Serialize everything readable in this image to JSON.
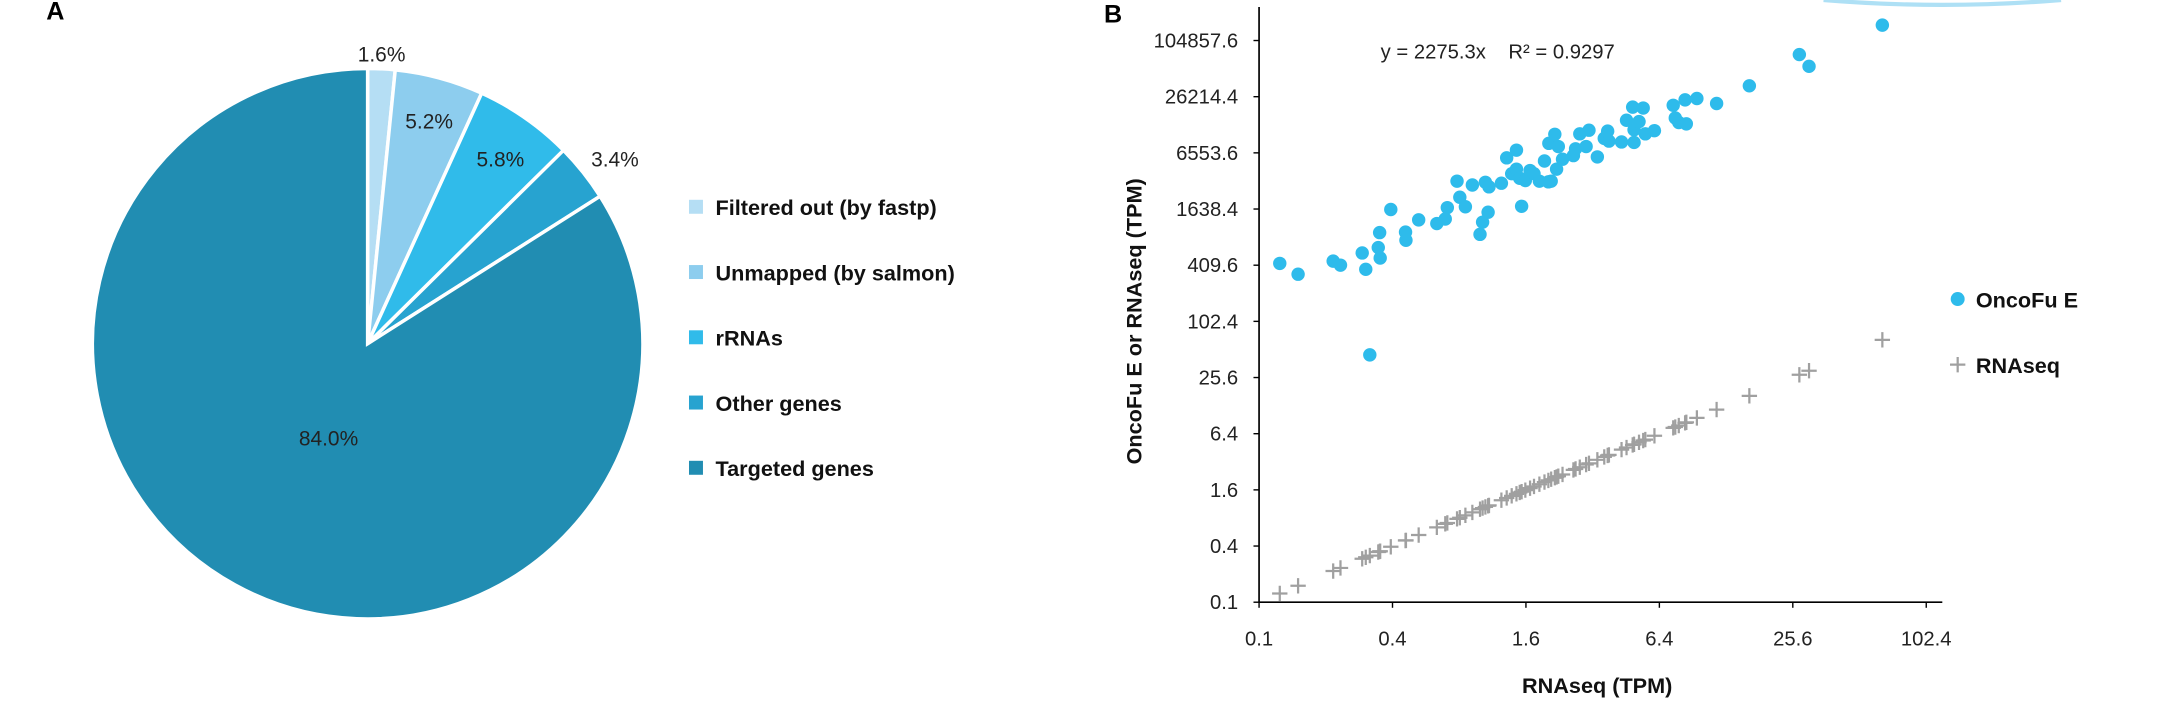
{
  "panels": {
    "a": "A",
    "b": "B"
  },
  "chart_data": [
    {
      "type": "pie",
      "categories": [
        "Filtered out (by fastp)",
        "Unmapped (by salmon)",
        "rRNAs",
        "Other genes",
        "Targeted genes"
      ],
      "values": [
        1.6,
        5.2,
        5.8,
        3.4,
        84.0
      ],
      "labels": [
        "1.6%",
        "5.2%",
        "5.8%",
        "3.4%",
        "84.0%"
      ],
      "colors": [
        "#b5def4",
        "#8dcdee",
        "#30bbea",
        "#27a3d0",
        "#218db2"
      ],
      "start": "top, clockwise",
      "legend": "right"
    },
    {
      "type": "scatter",
      "xlabel": "RNAseq (TPM)",
      "ylabel": "OncoFu E or RNAseq (TPM)",
      "xscale": "log4",
      "yscale": "log4",
      "xlim": [
        0.1,
        124
      ],
      "ylim": [
        0.1,
        262144
      ],
      "xticks": [
        "0.1",
        "0.4",
        "1.6",
        "6.4",
        "25.6",
        "102.4"
      ],
      "yticks": [
        "0.1",
        "0.4",
        "1.6",
        "6.4",
        "25.6",
        "102.4",
        "409.6",
        "1638.4",
        "6553.6",
        "26214.4",
        "104857.6"
      ],
      "grid": false,
      "legend": "right",
      "annotation": "y = 2275.3x    R² = 0.9297",
      "series": [
        {
          "name": "OncoFu E",
          "marker": "circle",
          "color": "#2ebbeb",
          "points": [
            [
              0.124,
              428
            ],
            [
              0.15,
              328
            ],
            [
              0.216,
              453
            ],
            [
              0.233,
              410
            ],
            [
              0.292,
              554
            ],
            [
              0.303,
              370
            ],
            [
              0.316,
              44.8
            ],
            [
              0.345,
              633
            ],
            [
              0.35,
              916
            ],
            [
              0.352,
              489
            ],
            [
              0.393,
              1620
            ],
            [
              0.458,
              927
            ],
            [
              0.46,
              758
            ],
            [
              0.525,
              1253
            ],
            [
              0.634,
              1145
            ],
            [
              0.692,
              1281
            ],
            [
              0.707,
              1694
            ],
            [
              0.782,
              3259
            ],
            [
              0.805,
              2190
            ],
            [
              0.853,
              1733
            ],
            [
              0.917,
              2964
            ],
            [
              0.993,
              877
            ],
            [
              1.02,
              1185
            ],
            [
              1.05,
              3170
            ],
            [
              1.08,
              1515
            ],
            [
              1.09,
              2833
            ],
            [
              1.24,
              3098
            ],
            [
              1.31,
              5797
            ],
            [
              1.38,
              3919
            ],
            [
              1.45,
              7006
            ],
            [
              1.45,
              4381
            ],
            [
              1.5,
              3503
            ],
            [
              1.53,
              1753
            ],
            [
              1.59,
              3313
            ],
            [
              1.67,
              4237
            ],
            [
              1.74,
              3920
            ],
            [
              1.84,
              3260
            ],
            [
              1.94,
              5361
            ],
            [
              2.02,
              3206
            ],
            [
              2.03,
              8290
            ],
            [
              2.08,
              3260
            ],
            [
              2.16,
              10361
            ],
            [
              2.2,
              4381
            ],
            [
              2.24,
              7661
            ],
            [
              2.34,
              5603
            ],
            [
              2.62,
              6128
            ],
            [
              2.68,
              7248
            ],
            [
              2.8,
              10479
            ],
            [
              2.99,
              7661
            ],
            [
              3.08,
              11456
            ],
            [
              3.36,
              5928
            ],
            [
              3.61,
              9372
            ],
            [
              3.74,
              11207
            ],
            [
              3.79,
              8762
            ],
            [
              4.32,
              8572
            ],
            [
              4.55,
              14654
            ],
            [
              4.85,
              20264
            ],
            [
              4.92,
              11593
            ],
            [
              4.92,
              8474
            ],
            [
              5.18,
              14169
            ],
            [
              5.41,
              19818
            ],
            [
              5.53,
              10479
            ],
            [
              6.08,
              11331
            ],
            [
              7.39,
              21208
            ],
            [
              7.55,
              15493
            ],
            [
              7.83,
              13867
            ],
            [
              8.36,
              24235
            ],
            [
              8.47,
              13396
            ],
            [
              9.45,
              25061
            ],
            [
              11.6,
              22164
            ],
            [
              16.3,
              34288
            ],
            [
              27.4,
              74146
            ],
            [
              30.3,
              55470
            ],
            [
              64.9,
              153302
            ]
          ]
        },
        {
          "name": "RNAseq",
          "marker": "plus",
          "color": "#a0a0a0",
          "points": [
            [
              0.124,
              0.124
            ],
            [
              0.15,
              0.15
            ],
            [
              0.216,
              0.216
            ],
            [
              0.233,
              0.233
            ],
            [
              0.292,
              0.292
            ],
            [
              0.303,
              0.303
            ],
            [
              0.316,
              0.316
            ],
            [
              0.345,
              0.345
            ],
            [
              0.35,
              0.35
            ],
            [
              0.352,
              0.352
            ],
            [
              0.393,
              0.393
            ],
            [
              0.458,
              0.458
            ],
            [
              0.46,
              0.46
            ],
            [
              0.525,
              0.525
            ],
            [
              0.634,
              0.634
            ],
            [
              0.692,
              0.692
            ],
            [
              0.707,
              0.707
            ],
            [
              0.782,
              0.782
            ],
            [
              0.805,
              0.805
            ],
            [
              0.853,
              0.853
            ],
            [
              0.917,
              0.917
            ],
            [
              0.993,
              0.993
            ],
            [
              1.02,
              1.02
            ],
            [
              1.05,
              1.05
            ],
            [
              1.08,
              1.08
            ],
            [
              1.09,
              1.09
            ],
            [
              1.24,
              1.24
            ],
            [
              1.31,
              1.31
            ],
            [
              1.38,
              1.38
            ],
            [
              1.45,
              1.45
            ],
            [
              1.5,
              1.5
            ],
            [
              1.53,
              1.53
            ],
            [
              1.59,
              1.59
            ],
            [
              1.67,
              1.67
            ],
            [
              1.74,
              1.74
            ],
            [
              1.84,
              1.84
            ],
            [
              1.94,
              1.94
            ],
            [
              2.02,
              2.02
            ],
            [
              2.08,
              2.08
            ],
            [
              2.16,
              2.16
            ],
            [
              2.2,
              2.2
            ],
            [
              2.24,
              2.24
            ],
            [
              2.34,
              2.34
            ],
            [
              2.62,
              2.62
            ],
            [
              2.68,
              2.68
            ],
            [
              2.8,
              2.8
            ],
            [
              2.99,
              2.99
            ],
            [
              3.08,
              3.08
            ],
            [
              3.36,
              3.36
            ],
            [
              3.61,
              3.61
            ],
            [
              3.74,
              3.74
            ],
            [
              3.79,
              3.79
            ],
            [
              4.32,
              4.32
            ],
            [
              4.55,
              4.55
            ],
            [
              4.85,
              4.85
            ],
            [
              4.92,
              4.92
            ],
            [
              5.18,
              5.18
            ],
            [
              5.41,
              5.41
            ],
            [
              5.53,
              5.53
            ],
            [
              6.08,
              6.08
            ],
            [
              7.39,
              7.39
            ],
            [
              7.55,
              7.55
            ],
            [
              7.83,
              7.83
            ],
            [
              8.36,
              8.36
            ],
            [
              8.47,
              8.47
            ],
            [
              9.45,
              9.45
            ],
            [
              11.6,
              11.6
            ],
            [
              16.3,
              16.3
            ],
            [
              27.4,
              27.4
            ],
            [
              30.3,
              30.3
            ],
            [
              64.9,
              64.9
            ]
          ]
        }
      ]
    }
  ]
}
